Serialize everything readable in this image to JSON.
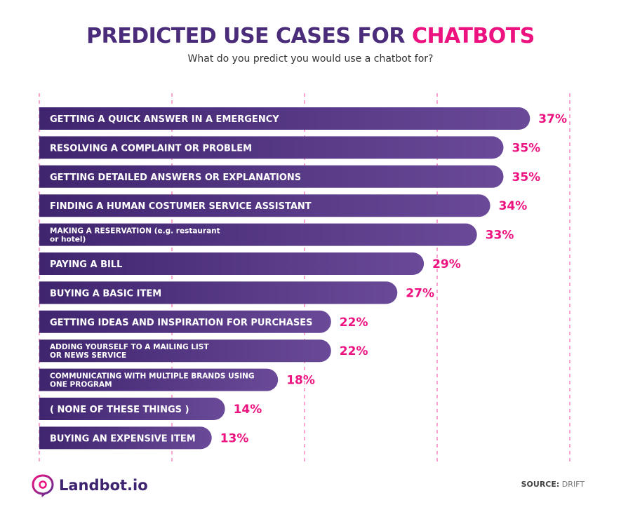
{
  "header": {
    "title_prefix": "PREDICTED USE CASES FOR",
    "title_accent": "CHATBOTS",
    "subtitle": "What do you predict you would use a chatbot for?"
  },
  "colors": {
    "bar_dark": "#3f246e",
    "bar_light": "#6a4a98",
    "value": "#ec1380",
    "grid": "#ec1380",
    "title": "#4a2c7a"
  },
  "chart_data": {
    "type": "bar",
    "orientation": "horizontal",
    "categories": [
      "GETTING A QUICK ANSWER IN A EMERGENCY",
      "RESOLVING A COMPLAINT OR PROBLEM",
      "GETTING DETAILED ANSWERS OR EXPLANATIONS",
      "FINDING A HUMAN COSTUMER SERVICE ASSISTANT",
      "MAKING A RESERVATION (e.g. restaurant or hotel)",
      "PAYING A BILL",
      "BUYING A BASIC ITEM",
      "GETTING IDEAS AND INSPIRATION FOR PURCHASES",
      "ADDING YOURSELF TO A MAILING LIST OR NEWS SERVICE",
      "COMMUNICATING WITH MULTIPLE BRANDS USING ONE PROGRAM",
      "( NONE OF THESE THINGS )",
      "BUYING AN EXPENSIVE ITEM"
    ],
    "values": [
      37,
      35,
      35,
      34,
      33,
      29,
      27,
      22,
      22,
      18,
      14,
      13
    ],
    "value_labels": [
      "37%",
      "35%",
      "35%",
      "34%",
      "33%",
      "29%",
      "27%",
      "22%",
      "22%",
      "18%",
      "14%",
      "13%"
    ],
    "title": "PREDICTED USE CASES FOR CHATBOTS",
    "xlim": [
      0,
      40
    ],
    "grid": true,
    "grid_style": "dashed vertical"
  },
  "footer": {
    "brand": "Landbot.io",
    "source_key": "SOURCE:",
    "source_value": "DRIFT"
  },
  "icons": {
    "brand_logo": "landbot-logo-icon"
  }
}
